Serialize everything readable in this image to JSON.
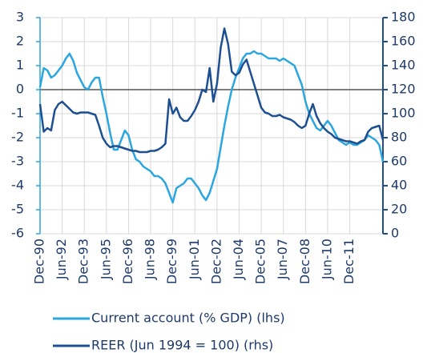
{
  "chart_data": {
    "type": "line",
    "categories": [
      "Dec-90",
      null,
      null,
      null,
      null,
      null,
      "Jun-92",
      null,
      null,
      null,
      null,
      null,
      "Dec-93",
      null,
      null,
      null,
      null,
      null,
      "Jun-95",
      null,
      null,
      null,
      null,
      null,
      "Dec-96",
      null,
      null,
      null,
      null,
      null,
      "Jun-98",
      null,
      null,
      null,
      null,
      null,
      "Dec-99",
      null,
      null,
      null,
      null,
      null,
      "Jun-01",
      null,
      null,
      null,
      null,
      null,
      "Dec-02",
      null,
      null,
      null,
      null,
      null,
      "Jun-04",
      null,
      null,
      null,
      null,
      null,
      "Dec-05",
      null,
      null,
      null,
      null,
      null,
      "Jun-07",
      null,
      null,
      null,
      null,
      null,
      "Dec-08",
      null,
      null,
      null,
      null,
      null,
      "Jun-10",
      null,
      null,
      null,
      null,
      null,
      "Dec-11",
      null,
      null,
      null,
      null,
      null,
      null,
      null,
      null,
      null
    ],
    "series": [
      {
        "name": "Current account (% GDP) (lhs)",
        "color": "#2ba6de",
        "axis": "y",
        "values": [
          0.1,
          0.9,
          0.8,
          0.5,
          0.6,
          0.8,
          1.0,
          1.3,
          1.5,
          1.2,
          0.7,
          0.4,
          0.1,
          0.0,
          0.3,
          0.5,
          0.5,
          -0.3,
          -1.0,
          -1.8,
          -2.5,
          -2.5,
          -2.1,
          -1.7,
          -1.9,
          -2.5,
          -2.9,
          -3.0,
          -3.2,
          -3.3,
          -3.4,
          -3.6,
          -3.6,
          -3.7,
          -3.9,
          -4.3,
          -4.7,
          -4.1,
          -4.0,
          -3.9,
          -3.7,
          -3.7,
          -3.9,
          -4.1,
          -4.4,
          -4.6,
          -4.3,
          -3.8,
          -3.3,
          -2.4,
          -1.5,
          -0.7,
          0.0,
          0.5,
          0.9,
          1.3,
          1.5,
          1.5,
          1.6,
          1.5,
          1.5,
          1.4,
          1.3,
          1.3,
          1.3,
          1.2,
          1.3,
          1.2,
          1.1,
          1.0,
          0.6,
          0.2,
          -0.5,
          -1.0,
          -1.3,
          -1.6,
          -1.7,
          -1.5,
          -1.3,
          -1.5,
          -1.8,
          -2.1,
          -2.2,
          -2.3,
          -2.2,
          -2.3,
          -2.3,
          -2.2,
          -2.1,
          -1.9,
          -2.0,
          -2.1,
          -2.3,
          -3.0
        ]
      },
      {
        "name": "REER (Jun 1994 = 100) (rhs)",
        "color": "#1d4f91",
        "axis": "y2",
        "values": [
          108,
          85,
          88,
          86,
          103,
          108,
          110,
          107,
          104,
          101,
          100,
          101,
          101,
          101,
          100,
          99,
          90,
          80,
          75,
          72,
          73,
          73,
          72,
          71,
          70,
          69,
          69,
          68,
          68,
          68,
          69,
          69,
          70,
          72,
          75,
          112,
          100,
          105,
          97,
          94,
          94,
          98,
          103,
          110,
          120,
          118,
          138,
          110,
          125,
          155,
          171,
          158,
          135,
          132,
          134,
          141,
          145,
          135,
          125,
          115,
          105,
          101,
          100,
          98,
          98,
          99,
          97,
          96,
          95,
          93,
          90,
          88,
          90,
          100,
          108,
          98,
          92,
          88,
          85,
          83,
          80,
          79,
          78,
          77,
          77,
          76,
          75,
          77,
          78,
          85,
          88,
          89,
          90,
          78
        ]
      }
    ],
    "ylim": [
      -6,
      3
    ],
    "yticks": [
      -6,
      -5,
      -4,
      -3,
      -2,
      -1,
      0,
      1,
      2,
      3
    ],
    "y2lim": [
      0,
      180
    ],
    "y2ticks": [
      0,
      20,
      40,
      60,
      80,
      100,
      120,
      140,
      160,
      180
    ],
    "grid": true
  }
}
